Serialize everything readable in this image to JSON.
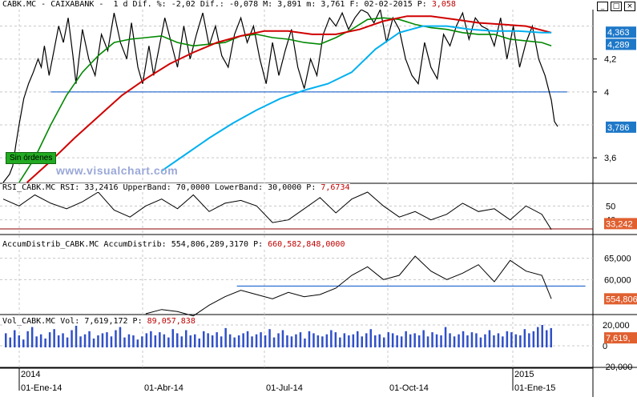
{
  "header": {
    "text": "CABK.MC - CAIXABANK -  1 d Dif. %: -2,02 Dif.: -0,078 M: 3,891 m: 3,761 F: 02-02-2015 P:",
    "p_value": "3,058"
  },
  "window_controls": {
    "minimize": "_",
    "maximize": "□",
    "close": "×"
  },
  "watermark": "www.visualchart.com",
  "status_badge": "Sin órdenes",
  "panels": {
    "rsi": {
      "label": "RSI_CABK.MC RSI: 33,2416 UpperBand: 70,0000 LowerBand: 30,0000 P:",
      "p_value": "7,6734"
    },
    "accum": {
      "label": "AccumDistrib_CABK.MC AccumDistrib: 554,806,289,3170 P:",
      "p_value": "660,582,848,0000"
    },
    "vol": {
      "label": "Vol_CABK.MC Vol: 7,619,172 P:",
      "p_value": "89,057,838"
    }
  },
  "colors": {
    "price": "#000000",
    "ma_short": "#008800",
    "ma_mid": "#d00000",
    "ma_long": "#00b0f0",
    "hline": "#0050c8",
    "volume": "#3050c8",
    "rsi_band": "#8b0000",
    "value_tag": "#1e78c8",
    "value_tag_red": "#e06030"
  },
  "chart_data": [
    {
      "type": "line",
      "panel": "price",
      "ylim": [
        3.45,
        4.5
      ],
      "y_ticks": [
        "4,2",
        "4",
        "3,6"
      ],
      "price_tags": [
        {
          "value": "4,363",
          "color": "blue"
        },
        {
          "value": "4,289",
          "color": "blue"
        },
        {
          "value": "3,786",
          "color": "blue"
        }
      ],
      "support_level": 4.0,
      "series": [
        {
          "role": "close",
          "x": [
            0,
            8,
            12,
            16,
            20,
            26,
            32,
            38,
            44,
            48,
            52,
            58,
            64,
            70,
            76,
            82,
            88,
            92,
            100,
            108,
            116,
            124,
            132,
            140,
            148,
            156,
            162,
            170,
            176,
            184,
            190,
            196,
            204,
            212,
            220,
            228,
            236,
            244,
            252,
            260,
            268,
            276,
            284,
            292,
            300,
            308,
            316,
            324,
            332,
            340,
            348,
            356,
            364,
            372,
            380,
            388,
            396,
            404,
            412,
            420,
            428,
            436,
            444,
            452,
            460,
            468,
            476,
            484,
            492,
            500,
            508,
            516,
            524,
            532,
            540,
            548,
            556,
            564,
            572,
            580,
            588,
            596,
            604,
            612,
            620,
            628,
            636,
            644,
            652,
            660,
            668,
            676,
            684,
            692,
            696,
            700
          ],
          "values": [
            3.45,
            3.5,
            3.55,
            3.68,
            3.8,
            3.96,
            4.05,
            4.12,
            4.2,
            4.15,
            4.28,
            4.1,
            4.25,
            4.4,
            4.3,
            4.45,
            4.22,
            4.05,
            4.38,
            4.2,
            4.1,
            4.35,
            4.25,
            4.48,
            4.3,
            4.2,
            4.42,
            4.15,
            4.05,
            4.28,
            4.1,
            4.25,
            4.45,
            4.3,
            4.15,
            4.4,
            4.2,
            4.35,
            4.48,
            4.28,
            4.4,
            4.22,
            4.15,
            4.35,
            4.45,
            4.3,
            4.4,
            4.2,
            4.05,
            4.3,
            4.1,
            4.25,
            4.38,
            4.15,
            4.02,
            4.2,
            4.1,
            4.35,
            4.45,
            4.4,
            4.48,
            4.38,
            4.45,
            4.5,
            4.48,
            4.42,
            4.5,
            4.3,
            4.45,
            4.38,
            4.2,
            4.1,
            4.05,
            4.3,
            4.15,
            4.08,
            4.35,
            4.28,
            4.4,
            4.48,
            4.32,
            4.45,
            4.4,
            4.38,
            4.28,
            4.45,
            4.2,
            4.4,
            4.15,
            4.3,
            4.4,
            4.2,
            4.1,
            3.95,
            3.82,
            3.79
          ]
        },
        {
          "role": "ma_short",
          "x": [
            20,
            40,
            60,
            80,
            100,
            120,
            140,
            160,
            180,
            200,
            220,
            240,
            260,
            280,
            300,
            320,
            340,
            360,
            380,
            400,
            420,
            440,
            460,
            480,
            500,
            520,
            540,
            560,
            580,
            600,
            620,
            640,
            660,
            680,
            692
          ],
          "values": [
            3.45,
            3.6,
            3.8,
            3.98,
            4.12,
            4.22,
            4.3,
            4.32,
            4.33,
            4.34,
            4.3,
            4.28,
            4.29,
            4.3,
            4.34,
            4.35,
            4.33,
            4.32,
            4.3,
            4.29,
            4.33,
            4.38,
            4.44,
            4.45,
            4.44,
            4.41,
            4.39,
            4.38,
            4.36,
            4.35,
            4.35,
            4.32,
            4.31,
            4.3,
            4.28
          ]
        },
        {
          "role": "ma_mid",
          "x": [
            30,
            60,
            90,
            120,
            150,
            180,
            210,
            240,
            270,
            300,
            330,
            360,
            390,
            420,
            450,
            480,
            510,
            540,
            570,
            600,
            630,
            660,
            692
          ],
          "values": [
            3.45,
            3.58,
            3.72,
            3.85,
            3.98,
            4.08,
            4.17,
            4.24,
            4.3,
            4.34,
            4.37,
            4.37,
            4.35,
            4.35,
            4.38,
            4.43,
            4.46,
            4.46,
            4.44,
            4.42,
            4.41,
            4.4,
            4.36
          ]
        },
        {
          "role": "ma_long",
          "x": [
            200,
            230,
            260,
            290,
            320,
            350,
            380,
            410,
            440,
            470,
            500,
            530,
            560,
            590,
            620,
            650,
            680,
            692
          ],
          "values": [
            3.52,
            3.62,
            3.72,
            3.81,
            3.89,
            3.96,
            4.01,
            4.05,
            4.12,
            4.26,
            4.36,
            4.4,
            4.4,
            4.38,
            4.37,
            4.37,
            4.36,
            4.36
          ]
        }
      ]
    },
    {
      "type": "line",
      "panel": "rsi",
      "ylim": [
        30,
        60
      ],
      "y_ticks": [
        "50",
        "40"
      ],
      "value_tag": "33,242",
      "upper_band": 70,
      "lower_band": 30,
      "series": [
        {
          "role": "rsi",
          "x": [
            0,
            20,
            40,
            60,
            80,
            100,
            120,
            140,
            160,
            180,
            200,
            220,
            240,
            260,
            280,
            300,
            320,
            340,
            360,
            380,
            400,
            420,
            440,
            460,
            480,
            500,
            520,
            540,
            560,
            580,
            600,
            620,
            640,
            660,
            680,
            692
          ],
          "values": [
            55,
            50,
            58,
            52,
            48,
            53,
            60,
            47,
            42,
            50,
            55,
            48,
            58,
            46,
            52,
            54,
            50,
            38,
            40,
            48,
            56,
            45,
            55,
            60,
            50,
            42,
            46,
            40,
            44,
            52,
            46,
            48,
            40,
            50,
            44,
            33
          ]
        }
      ]
    },
    {
      "type": "line",
      "panel": "accum",
      "ylim": [
        52000,
        67000
      ],
      "y_ticks": [
        "65,000",
        "60,000"
      ],
      "value_tag": "554,806",
      "reference_level": 58500,
      "series": [
        {
          "role": "accum_distrib",
          "x": [
            180,
            200,
            220,
            240,
            260,
            280,
            300,
            320,
            340,
            360,
            380,
            400,
            420,
            440,
            460,
            480,
            500,
            520,
            540,
            560,
            580,
            600,
            620,
            640,
            660,
            680,
            692
          ],
          "values": [
            52000,
            53000,
            52500,
            51500,
            54000,
            56000,
            57500,
            56500,
            55500,
            57000,
            56000,
            56500,
            58000,
            61000,
            63000,
            60000,
            61000,
            65500,
            62000,
            60000,
            61500,
            63500,
            59500,
            64500,
            62000,
            61000,
            55500
          ]
        }
      ]
    },
    {
      "type": "bar",
      "panel": "vol",
      "ylim": [
        -20,
        20
      ],
      "y_ticks": [
        "20,000",
        "0",
        "-20,000"
      ],
      "value_tag": "7,619,",
      "series": [
        {
          "role": "volume",
          "values": [
            12,
            8,
            15,
            10,
            6,
            14,
            18,
            9,
            11,
            7,
            13,
            16,
            10,
            12,
            8,
            15,
            20,
            9,
            11,
            14,
            7,
            10,
            12,
            13,
            9,
            15,
            18,
            8,
            11,
            10,
            6,
            9,
            12,
            14,
            10,
            13,
            11,
            8,
            16,
            12,
            9,
            15,
            10,
            11,
            7,
            14,
            12,
            10,
            13,
            9,
            17,
            11,
            8,
            10,
            12,
            14,
            9,
            11,
            13,
            10,
            16,
            8,
            12,
            15,
            10,
            9,
            11,
            13,
            7,
            14,
            12,
            10,
            9,
            11,
            15,
            13,
            8,
            12,
            10,
            11,
            14,
            9,
            12,
            16,
            10,
            11,
            8,
            13,
            12,
            10,
            9,
            14,
            11,
            12,
            10,
            15,
            9,
            13,
            11,
            10,
            18,
            12,
            9,
            11,
            14,
            10,
            13,
            12,
            8,
            11,
            15,
            10,
            12,
            9,
            14,
            13,
            11,
            10,
            16,
            12,
            14,
            18,
            20,
            15,
            17
          ]
        }
      ]
    }
  ],
  "x_axis": {
    "year_labels": [
      "2014",
      "2015"
    ],
    "date_labels": [
      "01-Ene-14",
      "01-Abr-14",
      "01-Jul-14",
      "01-Oct-14",
      "01-Ene-15"
    ]
  }
}
